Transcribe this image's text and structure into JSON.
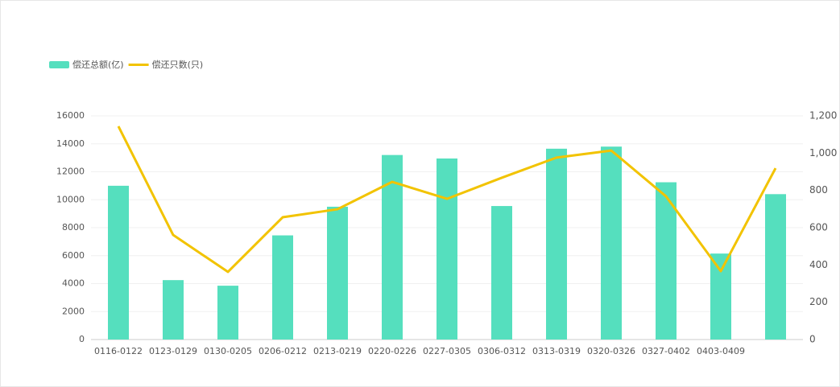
{
  "chart_data": {
    "type": "bar-line",
    "legend_position": "top-left",
    "categories": [
      "0116-0122",
      "0123-0129",
      "0130-0205",
      "0206-0212",
      "0213-0219",
      "0220-0226",
      "0227-0305",
      "0306-0312",
      "0313-0319",
      "0320-0326",
      "0327-0402",
      "0403-0409",
      null
    ],
    "series": [
      {
        "name": "偿还总额(亿)",
        "type": "bar",
        "color": "#55dfbe",
        "values": [
          11000,
          4250,
          3850,
          7450,
          9500,
          13200,
          12950,
          9550,
          13650,
          13800,
          11250,
          6150,
          10400
        ]
      },
      {
        "name": "偿还只数(只)",
        "type": "line",
        "axis": "y2",
        "color": "#f2c300",
        "values": [
          1144,
          561,
          363,
          656,
          699,
          846,
          755,
          868,
          976,
          1014,
          768,
          367,
          919
        ]
      }
    ],
    "ylim": [
      0,
      16000
    ],
    "yticks": [
      0,
      2000,
      4000,
      6000,
      8000,
      10000,
      12000,
      14000,
      16000
    ],
    "y2lim": [
      0,
      1200
    ],
    "y2ticks": [
      0,
      200,
      400,
      600,
      800,
      {
        "value": 1000,
        "label": "1,000"
      },
      {
        "value": 1200,
        "label": "1,200"
      }
    ],
    "grid": true
  }
}
